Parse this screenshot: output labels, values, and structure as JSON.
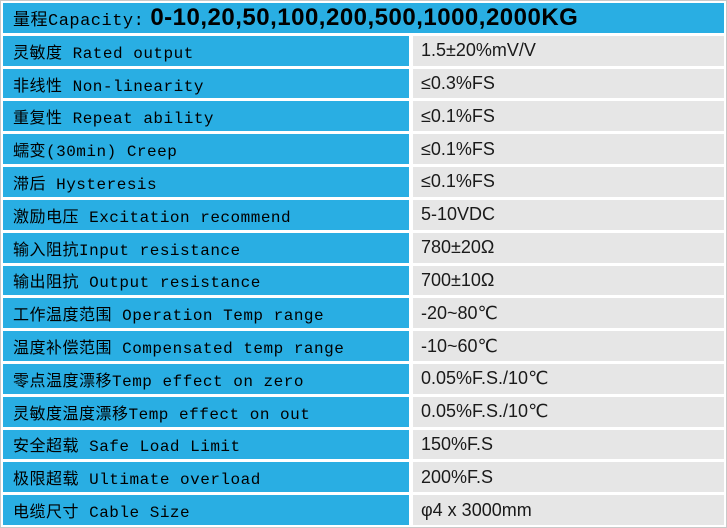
{
  "colors": {
    "accent_blue": "#29aee3",
    "value_cell_gray": "#e6e6e6",
    "separator_white": "#ffffff",
    "text_black": "#000000"
  },
  "table": {
    "header": {
      "label": "量程Capacity:",
      "value": "0-10,20,50,100,200,500,1000,2000KG"
    },
    "rows": [
      {
        "label": "灵敏度 Rated output",
        "value": "1.5±20%mV/V"
      },
      {
        "label": "非线性 Non-linearity",
        "value": "≤0.3%FS"
      },
      {
        "label": "重复性 Repeat ability",
        "value": "≤0.1%FS"
      },
      {
        "label": "蠕变(30min) Creep",
        "value": "≤0.1%FS"
      },
      {
        "label": "滞后 Hysteresis",
        "value": "≤0.1%FS"
      },
      {
        "label": "激励电压 Excitation recommend",
        "value": "5-10VDC"
      },
      {
        "label": "输入阻抗Input resistance",
        "value": "780±20Ω"
      },
      {
        "label": "输出阻抗 Output resistance",
        "value": "700±10Ω"
      },
      {
        "label": "工作温度范围 Operation Temp range",
        "value": "-20~80℃"
      },
      {
        "label": "温度补偿范围 Compensated temp range",
        "value": "-10~60℃"
      },
      {
        "label": "零点温度漂移Temp effect on zero",
        "value": "0.05%F.S./10℃"
      },
      {
        "label": "灵敏度温度漂移Temp effect on out",
        "value": "0.05%F.S./10℃"
      },
      {
        "label": "安全超载 Safe Load Limit",
        "value": "150%F.S"
      },
      {
        "label": "极限超载 Ultimate overload",
        "value": "200%F.S"
      },
      {
        "label": "电缆尺寸 Cable Size",
        "value": "φ4 x 3000mm"
      }
    ]
  }
}
